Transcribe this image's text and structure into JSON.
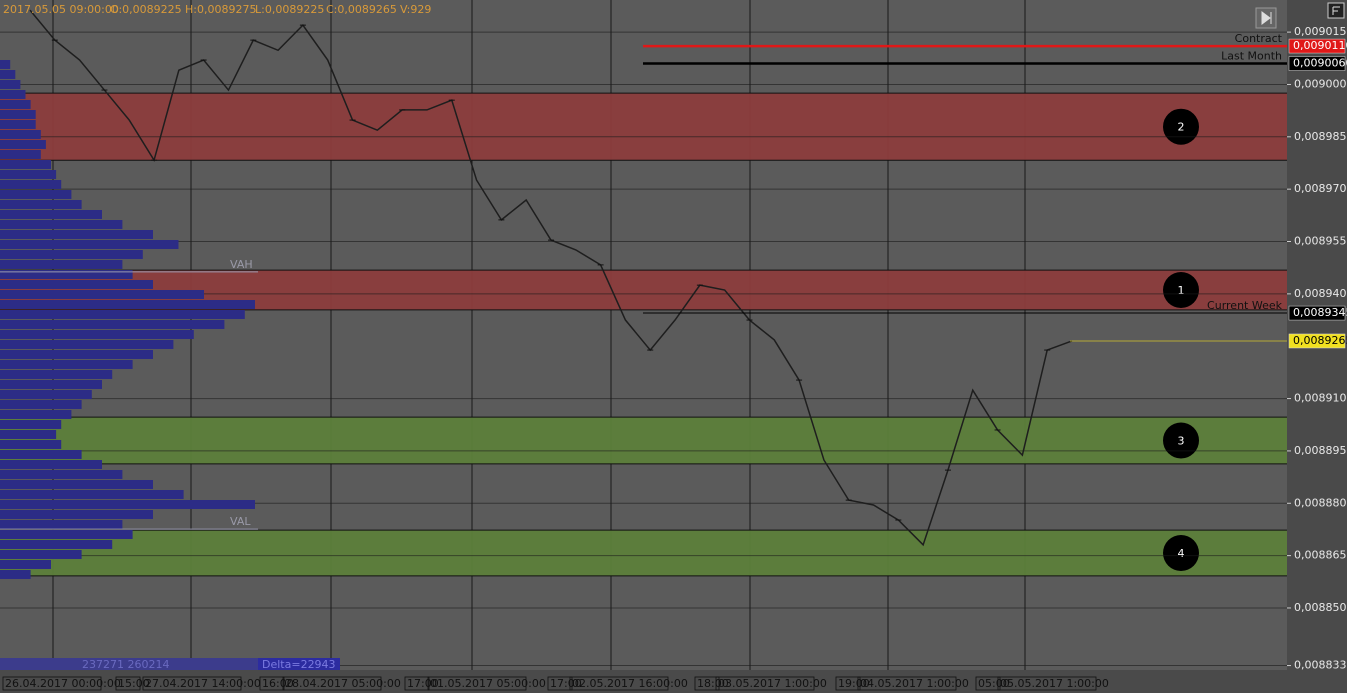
{
  "header": {
    "timestamp": "2017.05.05 09:00:00",
    "open": "O:0,0089225",
    "high": "H:0,0089275",
    "low": "L:0,0089225",
    "close": "C:0,0089265",
    "volume": "V:929"
  },
  "chart_data": {
    "type": "line",
    "ylim": [
      0.0088328,
      0.0090242
    ],
    "yticks": [
      {
        "value": 0.009015,
        "label": "0,0090150"
      },
      {
        "value": 0.009,
        "label": "0,0090000"
      },
      {
        "value": 0.008985,
        "label": "0,0089850"
      },
      {
        "value": 0.00897,
        "label": "0,0089700"
      },
      {
        "value": 0.008955,
        "label": "0,0089550"
      },
      {
        "value": 0.00894,
        "label": "0,0089400"
      },
      {
        "value": 0.00891,
        "label": "0,0089100"
      },
      {
        "value": 0.008895,
        "label": "0,0088950"
      },
      {
        "value": 0.00888,
        "label": "0,0088800"
      },
      {
        "value": 0.008865,
        "label": "0,0088650"
      },
      {
        "value": 0.00885,
        "label": "0,0088500"
      },
      {
        "value": 0.0088335,
        "label": "0,0088335"
      }
    ],
    "zones": [
      {
        "label": "2",
        "range": [
          0.0089783,
          0.0089975
        ],
        "color": "#8c3d3d"
      },
      {
        "label": "1",
        "range": [
          0.0089354,
          0.0089468
        ],
        "color": "#8c3d3d"
      },
      {
        "label": "3",
        "range": [
          0.0088913,
          0.0089047
        ],
        "color": "#5d7f3b"
      },
      {
        "label": "4",
        "range": [
          0.0088592,
          0.0088723
        ],
        "color": "#5d7f3b"
      }
    ],
    "levels": [
      {
        "name": "Contract",
        "value": 0.009011,
        "value_label": "0,0090110",
        "color": "#e01818"
      },
      {
        "name": "Last Month",
        "value": 0.009006,
        "value_label": "0,0090060",
        "color": "#000000"
      },
      {
        "name": "Current Week",
        "value": 0.0089345,
        "value_label": "0,0089345",
        "color": "#000000"
      },
      {
        "value": 0.0089265,
        "value_label": "0,0089265",
        "color": "#f0e020"
      }
    ],
    "price_series": {
      "color": "#1e1e1e",
      "values": [
        0.0090213,
        0.0090127,
        0.009007,
        0.0089984,
        0.0089898,
        0.0089783,
        0.0090041,
        0.009007,
        0.0089984,
        0.0090127,
        0.0090098,
        0.009017,
        0.009007,
        0.0089898,
        0.0089869,
        0.0089927,
        0.0089927,
        0.0089955,
        0.0089726,
        0.0089612,
        0.0089669,
        0.0089554,
        0.0089526,
        0.0089483,
        0.0089325,
        0.0089239,
        0.0089325,
        0.0089425,
        0.0089411,
        0.0089325,
        0.0089268,
        0.0089153,
        0.0088924,
        0.0088809,
        0.0088795,
        0.0088752,
        0.0088681,
        0.0088895,
        0.0089124,
        0.008901,
        0.0088938,
        0.0089239,
        0.0089265
      ]
    },
    "volume_profile": {
      "color": "#2c2c86",
      "values": [
        10,
        15,
        20,
        25,
        30,
        35,
        35,
        40,
        45,
        40,
        50,
        55,
        60,
        70,
        80,
        100,
        120,
        150,
        175,
        140,
        120,
        130,
        150,
        200,
        250,
        240,
        220,
        190,
        170,
        150,
        130,
        110,
        100,
        90,
        80,
        70,
        60,
        55,
        60,
        80,
        100,
        120,
        150,
        180,
        250,
        150,
        120,
        130,
        110,
        80,
        50,
        30
      ],
      "value_area": [
        {
          "name": "VAH",
          "value": 0.0089463
        },
        {
          "name": "VAL",
          "value": 0.0088726
        }
      ]
    },
    "x_labels": [
      "26.04.2017 00:00:00",
      "15:00",
      "27.04.2017 14:00:00",
      "16:00",
      "28.04.2017 05:00:00",
      "17:00",
      "01.05.2017 05:00:00",
      "17:00",
      "02.05.2017 16:00:00",
      "18:00",
      "03.05.2017 1:00:00",
      "19:00",
      "04.05.2017 1:00:00",
      "05:00",
      "05.05.2017 1:00:00"
    ],
    "footer": {
      "volumes": "237271 260214",
      "delta": "Delta=22943"
    }
  }
}
